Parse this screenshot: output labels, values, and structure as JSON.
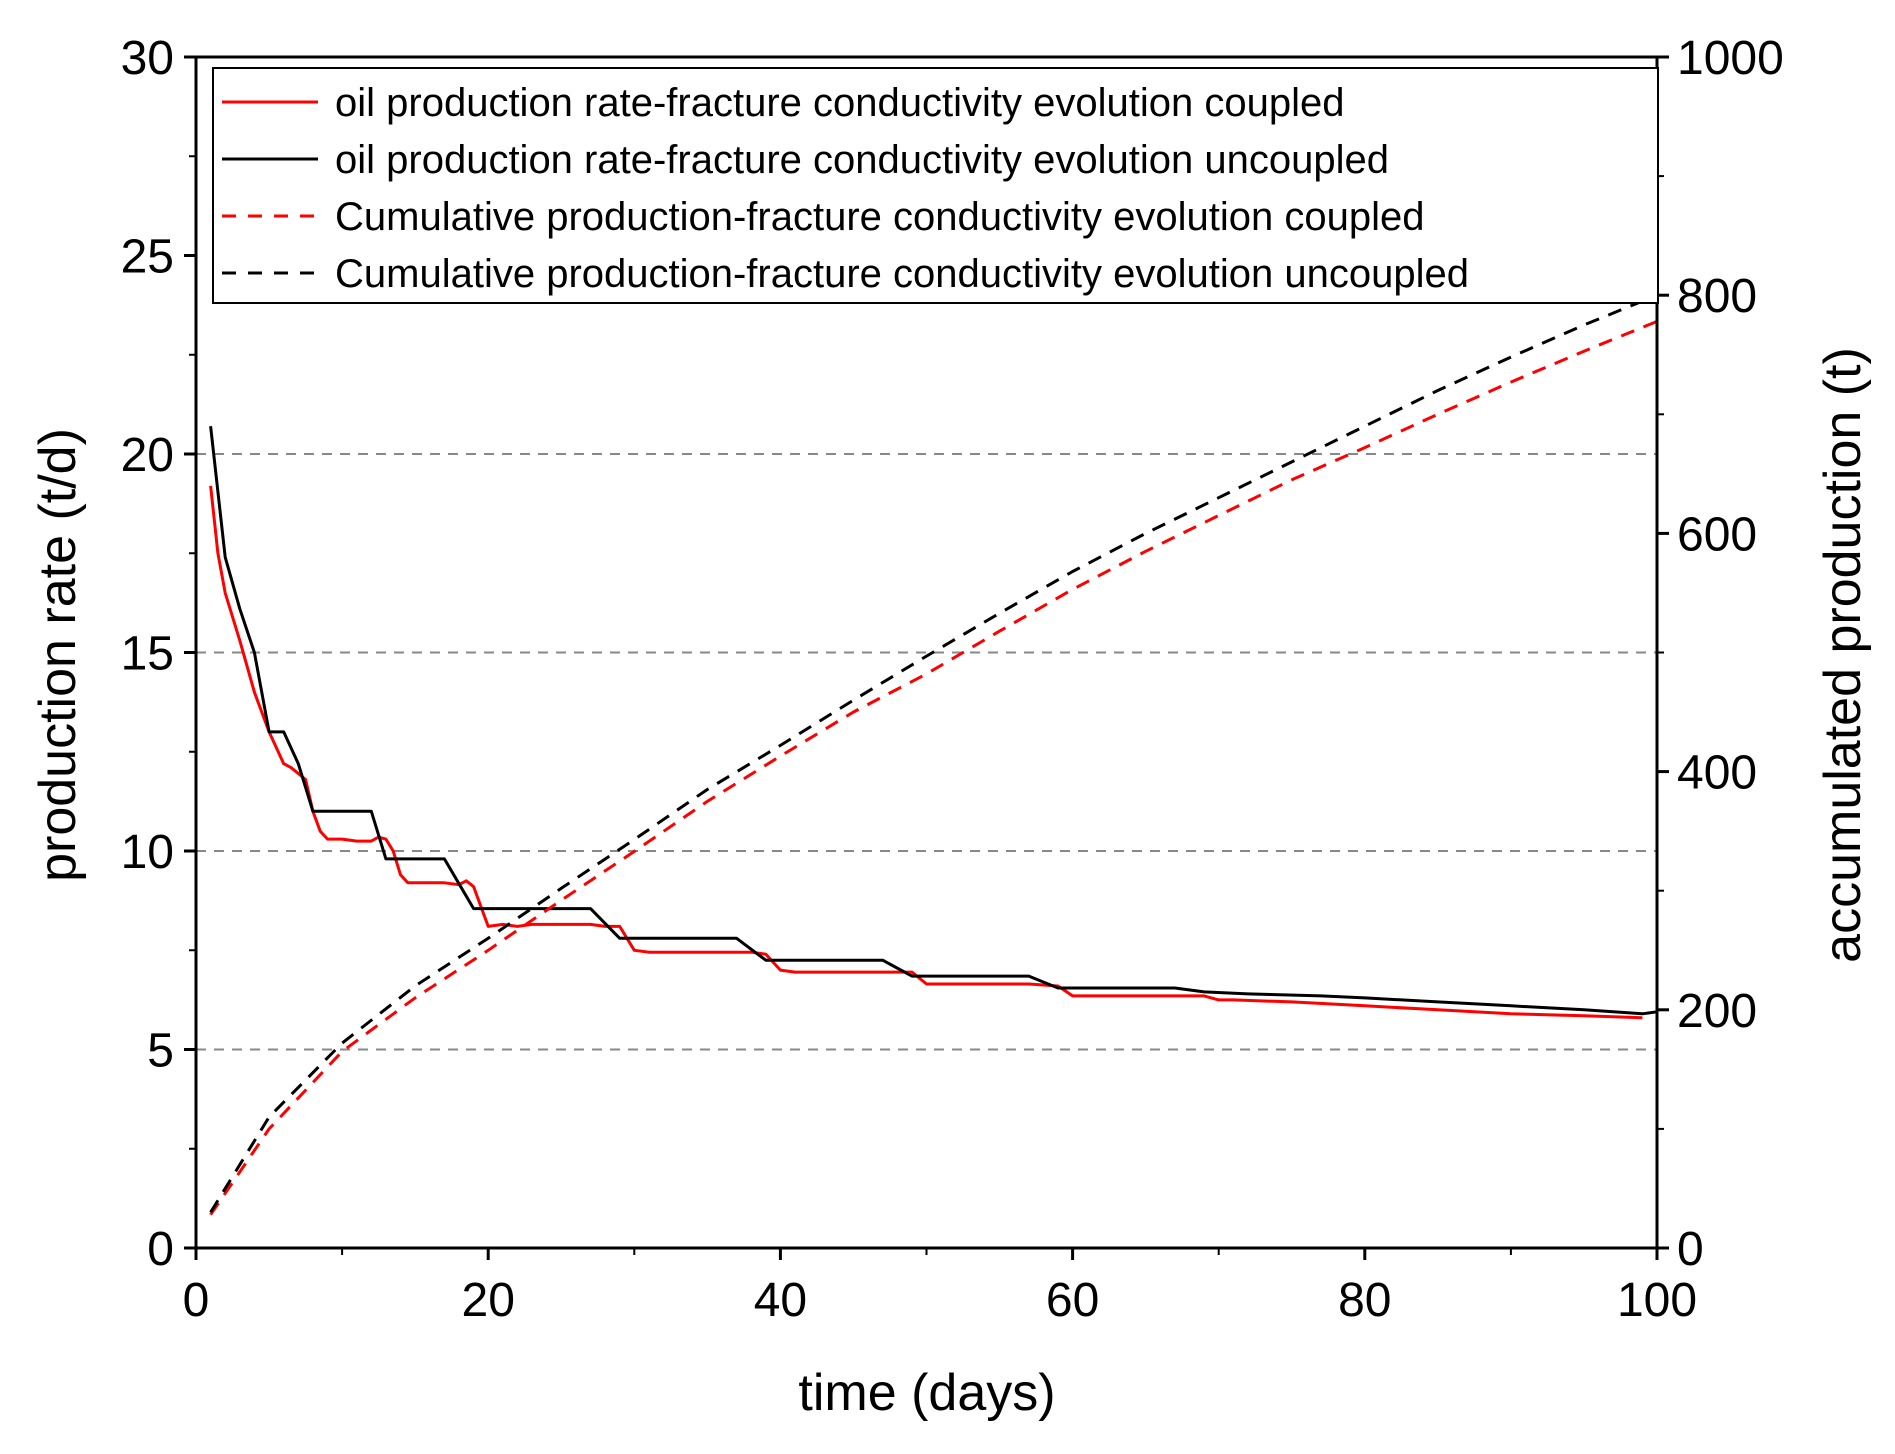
{
  "chart_data": {
    "type": "line",
    "xlabel": "time (days)",
    "ylabel": "production rate (t/d)",
    "y2label": "accumulated production (t)",
    "xlim": [
      0,
      100
    ],
    "ylim": [
      0,
      30
    ],
    "y2lim": [
      0,
      1000
    ],
    "xticks": [
      0,
      20,
      40,
      60,
      80,
      100
    ],
    "yticks": [
      0,
      5,
      10,
      15,
      20,
      25,
      30
    ],
    "y2ticks": [
      0,
      200,
      400,
      600,
      800,
      1000
    ],
    "grid_y": [
      5,
      10,
      15,
      20
    ],
    "legend_position": "top",
    "series": [
      {
        "name": "oil production rate-fracture conductivity evolution coupled",
        "axis": "left",
        "color": "#ff0000",
        "dash": "solid",
        "x": [
          1,
          1.5,
          2,
          3,
          4,
          5,
          6,
          6.5,
          7.5,
          8,
          8.5,
          9,
          10,
          11,
          12,
          12.5,
          13,
          13.5,
          14,
          14.5,
          17,
          18,
          18.5,
          19,
          20,
          21,
          22,
          23,
          25,
          27,
          28,
          29,
          30,
          31,
          33,
          35,
          37,
          38,
          39,
          40,
          41,
          42,
          44,
          46,
          48,
          49,
          50,
          51,
          53,
          55,
          57,
          59,
          60,
          61,
          63,
          65,
          67,
          69,
          70,
          71,
          75,
          80,
          85,
          90,
          95,
          99
        ],
        "values": [
          19.2,
          17.5,
          16.5,
          15.3,
          14.0,
          13.0,
          12.2,
          12.1,
          11.8,
          11.0,
          10.5,
          10.3,
          10.3,
          10.25,
          10.25,
          10.35,
          10.3,
          10.0,
          9.4,
          9.2,
          9.2,
          9.15,
          9.25,
          9.1,
          8.1,
          8.15,
          8.1,
          8.15,
          8.15,
          8.15,
          8.1,
          8.1,
          7.5,
          7.45,
          7.45,
          7.45,
          7.45,
          7.45,
          7.4,
          7.0,
          6.95,
          6.95,
          6.95,
          6.95,
          6.95,
          6.95,
          6.65,
          6.65,
          6.65,
          6.65,
          6.65,
          6.6,
          6.35,
          6.35,
          6.35,
          6.35,
          6.35,
          6.35,
          6.25,
          6.25,
          6.2,
          6.1,
          6.0,
          5.9,
          5.85,
          5.8
        ]
      },
      {
        "name": "oil production rate-fracture conductivity evolution uncoupled",
        "axis": "left",
        "color": "#000000",
        "dash": "solid",
        "x": [
          1,
          2,
          3,
          4,
          5,
          6,
          7,
          8,
          10,
          12,
          13,
          16,
          17,
          19,
          22,
          27,
          29,
          32,
          37,
          39,
          42,
          47,
          49,
          52,
          57,
          59,
          62,
          67,
          69,
          72,
          77,
          80,
          85,
          90,
          95,
          99,
          100
        ],
        "values": [
          20.7,
          17.4,
          16.1,
          15.0,
          13.0,
          13.0,
          12.2,
          11.0,
          11.0,
          11.0,
          9.8,
          9.8,
          9.8,
          8.55,
          8.55,
          8.55,
          7.8,
          7.8,
          7.8,
          7.25,
          7.25,
          7.25,
          6.85,
          6.85,
          6.85,
          6.55,
          6.55,
          6.55,
          6.45,
          6.4,
          6.35,
          6.3,
          6.2,
          6.1,
          6.0,
          5.9,
          5.95
        ]
      },
      {
        "name": "Cumulative production-fracture conductivity evolution coupled",
        "axis": "right",
        "color": "#ff0000",
        "dash": "dashed",
        "x": [
          1,
          5,
          10,
          15,
          20,
          25,
          30,
          35,
          40,
          45,
          50,
          55,
          60,
          65,
          70,
          75,
          80,
          85,
          90,
          95,
          100
        ],
        "values": [
          28,
          100,
          165,
          210,
          250,
          292,
          333,
          375,
          413,
          450,
          482,
          518,
          553,
          585,
          615,
          645,
          672,
          700,
          727,
          753,
          778
        ]
      },
      {
        "name": "Cumulative production-fracture conductivity evolution uncoupled",
        "axis": "right",
        "color": "#000000",
        "dash": "dashed",
        "x": [
          1,
          5,
          10,
          15,
          20,
          25,
          30,
          35,
          40,
          45,
          50,
          55,
          60,
          65,
          70,
          75,
          80,
          85,
          90,
          95,
          100
        ],
        "values": [
          30,
          110,
          172,
          220,
          260,
          302,
          343,
          385,
          422,
          460,
          497,
          533,
          568,
          600,
          630,
          660,
          690,
          720,
          748,
          775,
          800
        ]
      }
    ]
  }
}
